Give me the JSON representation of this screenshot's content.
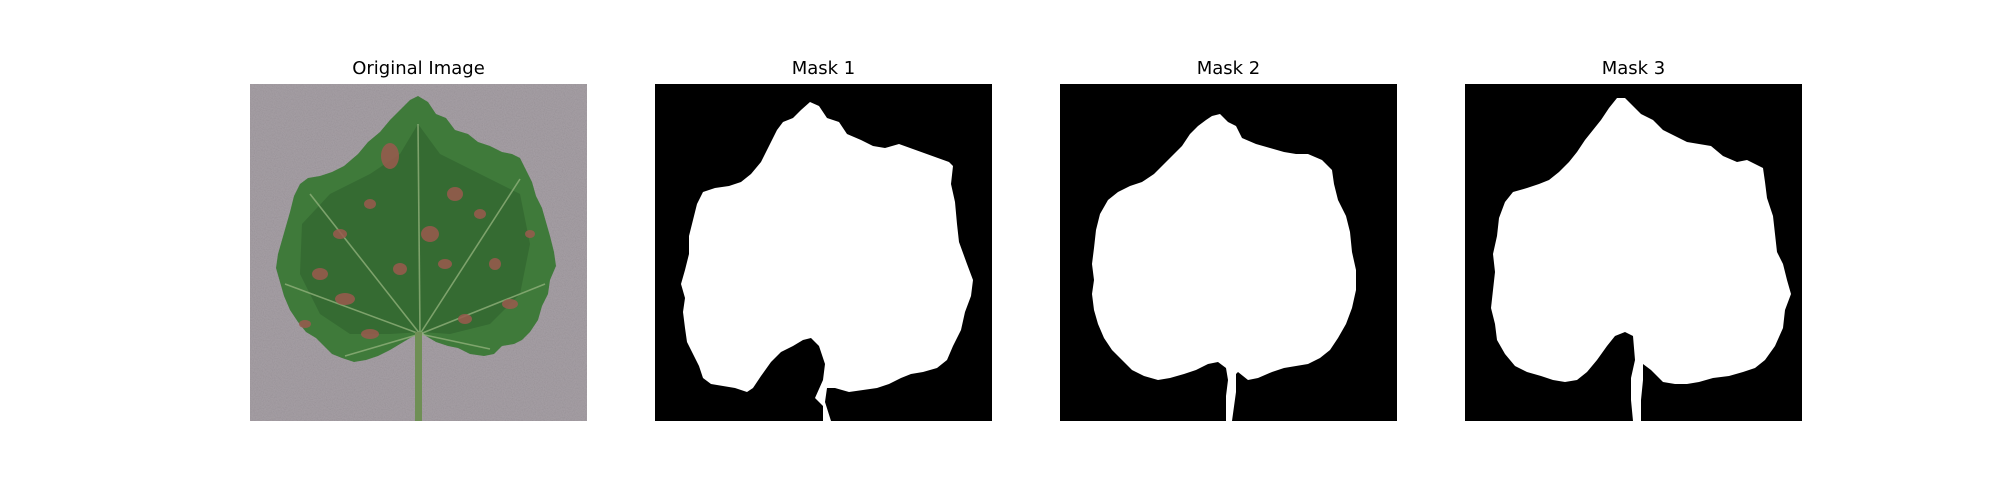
{
  "figure": {
    "panels": [
      {
        "title": "Original Image",
        "kind": "photo-leaf"
      },
      {
        "title": "Mask 1",
        "kind": "mask"
      },
      {
        "title": "Mask 2",
        "kind": "mask"
      },
      {
        "title": "Mask 3",
        "kind": "mask"
      }
    ],
    "colors": {
      "background": "#ffffff",
      "mask_background": "#000000",
      "mask_foreground": "#ffffff",
      "photo_background": "#a7a0a6",
      "leaf_green": "#3f7a3a",
      "leaf_dark": "#2e5f2c",
      "lesion": "#9a5a4e",
      "stem": "#6f8f55"
    }
  }
}
